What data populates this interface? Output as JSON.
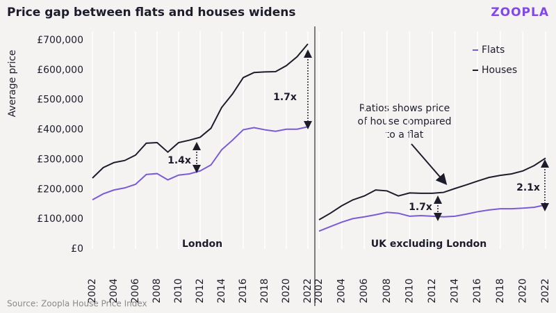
{
  "title": "Price gap between flats and houses widens",
  "brand": "ZOOPLA",
  "source": "Source: Zoopla House Price Index",
  "note": [
    "Ratios shows price",
    "of house compared",
    "to a flat"
  ],
  "chart_data": [
    {
      "type": "line",
      "panel_label": "London",
      "ylabel": "Average price",
      "x": [
        2002,
        2003,
        2004,
        2005,
        2006,
        2007,
        2008,
        2009,
        2010,
        2011,
        2012,
        2013,
        2014,
        2015,
        2016,
        2017,
        2018,
        2019,
        2020,
        2021,
        2022
      ],
      "xlim": [
        2002,
        2022
      ],
      "xticks": [
        2002,
        2004,
        2006,
        2008,
        2010,
        2012,
        2014,
        2016,
        2018,
        2020,
        2022
      ],
      "ylim": [
        0,
        700000
      ],
      "yticks": [
        {
          "value": 0,
          "label": "£0"
        },
        {
          "value": 100000,
          "label": "£100,000"
        },
        {
          "value": 200000,
          "label": "£200,000"
        },
        {
          "value": 300000,
          "label": "£300,000"
        },
        {
          "value": 400000,
          "label": "£400,000"
        },
        {
          "value": 500000,
          "label": "£500,000"
        },
        {
          "value": 600000,
          "label": "£600,000"
        },
        {
          "value": 700000,
          "label": "£700,000"
        }
      ],
      "annotations": [
        "1.4x",
        "1.7x"
      ],
      "series": [
        {
          "name": "Flats",
          "color": "#7a5bd6",
          "values": [
            165000,
            185000,
            198000,
            205000,
            217000,
            250000,
            253000,
            232000,
            248000,
            252000,
            262000,
            282000,
            333000,
            365000,
            400000,
            407000,
            400000,
            395000,
            402000,
            402000,
            410000
          ]
        },
        {
          "name": "Houses",
          "color": "#1c1c2b",
          "values": [
            238000,
            273000,
            290000,
            297000,
            315000,
            355000,
            357000,
            325000,
            357000,
            365000,
            375000,
            405000,
            475000,
            520000,
            575000,
            592000,
            594000,
            595000,
            615000,
            645000,
            688000
          ]
        }
      ]
    },
    {
      "type": "line",
      "panel_label": "UK excluding London",
      "legend": "top-right",
      "x": [
        2002,
        2003,
        2004,
        2005,
        2006,
        2007,
        2008,
        2009,
        2010,
        2011,
        2012,
        2013,
        2014,
        2015,
        2016,
        2017,
        2018,
        2019,
        2020,
        2021,
        2022
      ],
      "xlim": [
        2002,
        2022
      ],
      "xticks": [
        2002,
        2004,
        2006,
        2008,
        2010,
        2012,
        2014,
        2016,
        2018,
        2020,
        2022
      ],
      "ylim": [
        0,
        700000
      ],
      "annotations": [
        "1.7x",
        "2.1x"
      ],
      "series": [
        {
          "name": "Flats",
          "color": "#7a5bd6",
          "values": [
            60000,
            75000,
            90000,
            102000,
            108000,
            115000,
            123000,
            120000,
            110000,
            112000,
            110000,
            108000,
            110000,
            117000,
            125000,
            131000,
            135000,
            135000,
            137000,
            140000,
            148000
          ]
        },
        {
          "name": "Houses",
          "color": "#1c1c2b",
          "values": [
            98000,
            120000,
            145000,
            165000,
            178000,
            198000,
            195000,
            178000,
            188000,
            187000,
            187000,
            190000,
            203000,
            215000,
            228000,
            240000,
            247000,
            252000,
            262000,
            280000,
            305000
          ]
        }
      ]
    }
  ]
}
